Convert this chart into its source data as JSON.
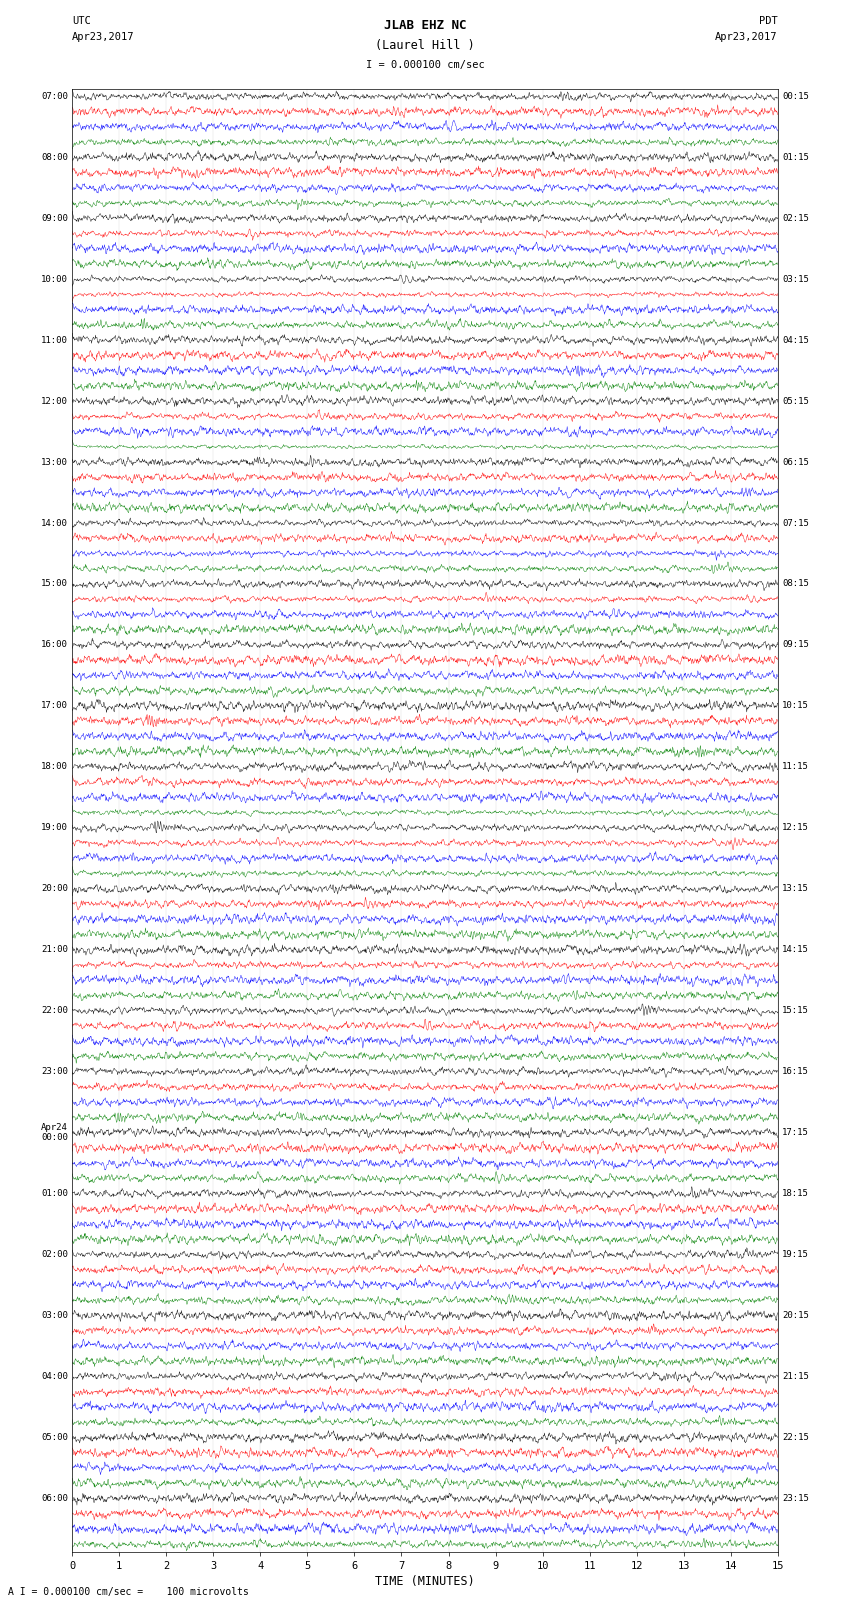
{
  "title_line1": "JLAB EHZ NC",
  "title_line2": "(Laurel Hill )",
  "scale_label": "I = 0.000100 cm/sec",
  "utc_header": "UTC",
  "utc_date": "Apr23,2017",
  "pdt_header": "PDT",
  "pdt_date": "Apr23,2017",
  "footer_label": "A I = 0.000100 cm/sec =    100 microvolts",
  "xlabel": "TIME (MINUTES)",
  "utc_labels": [
    [
      0,
      "07:00"
    ],
    [
      4,
      "08:00"
    ],
    [
      8,
      "09:00"
    ],
    [
      12,
      "10:00"
    ],
    [
      16,
      "11:00"
    ],
    [
      20,
      "12:00"
    ],
    [
      24,
      "13:00"
    ],
    [
      28,
      "14:00"
    ],
    [
      32,
      "15:00"
    ],
    [
      36,
      "16:00"
    ],
    [
      40,
      "17:00"
    ],
    [
      44,
      "18:00"
    ],
    [
      48,
      "19:00"
    ],
    [
      52,
      "20:00"
    ],
    [
      56,
      "21:00"
    ],
    [
      60,
      "22:00"
    ],
    [
      64,
      "23:00"
    ],
    [
      68,
      "Apr24\n00:00"
    ],
    [
      72,
      "01:00"
    ],
    [
      76,
      "02:00"
    ],
    [
      80,
      "03:00"
    ],
    [
      84,
      "04:00"
    ],
    [
      88,
      "05:00"
    ],
    [
      92,
      "06:00"
    ]
  ],
  "pdt_labels": [
    [
      0,
      "00:15"
    ],
    [
      4,
      "01:15"
    ],
    [
      8,
      "02:15"
    ],
    [
      12,
      "03:15"
    ],
    [
      16,
      "04:15"
    ],
    [
      20,
      "05:15"
    ],
    [
      24,
      "06:15"
    ],
    [
      28,
      "07:15"
    ],
    [
      32,
      "08:15"
    ],
    [
      36,
      "09:15"
    ],
    [
      40,
      "10:15"
    ],
    [
      44,
      "11:15"
    ],
    [
      48,
      "12:15"
    ],
    [
      52,
      "13:15"
    ],
    [
      56,
      "14:15"
    ],
    [
      60,
      "15:15"
    ],
    [
      64,
      "16:15"
    ],
    [
      68,
      "17:15"
    ],
    [
      72,
      "18:15"
    ],
    [
      76,
      "19:15"
    ],
    [
      80,
      "20:15"
    ],
    [
      84,
      "21:15"
    ],
    [
      88,
      "22:15"
    ],
    [
      92,
      "23:15"
    ]
  ],
  "colors": [
    "black",
    "red",
    "blue",
    "green"
  ],
  "num_rows": 96,
  "minutes": 15,
  "bg_color": "white",
  "trace_color_cycle": [
    "black",
    "red",
    "blue",
    "green"
  ]
}
